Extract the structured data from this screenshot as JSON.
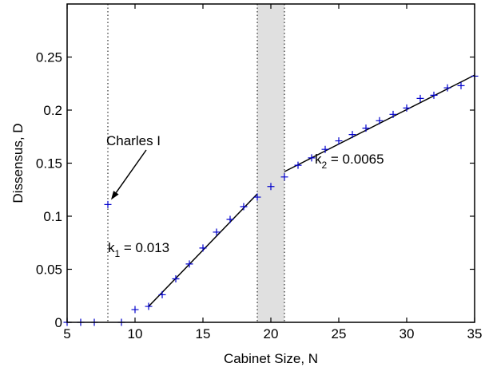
{
  "chart_data": {
    "type": "scatter",
    "xlabel": "Cabinet Size, N",
    "ylabel": "Dissensus, D",
    "xlim": [
      5,
      35
    ],
    "ylim": [
      0,
      0.3
    ],
    "xticks": [
      5,
      10,
      15,
      20,
      25,
      30,
      35
    ],
    "yticks": [
      0,
      0.05,
      0.1,
      0.15,
      0.2,
      0.25
    ],
    "ytick_labels": [
      "0",
      "0.05",
      "0.1",
      "0.15",
      "0.2",
      "0.25"
    ],
    "grid": false,
    "marker": "+",
    "marker_color": "#0000cc",
    "points": [
      {
        "x": 5,
        "y": 0
      },
      {
        "x": 6,
        "y": 0
      },
      {
        "x": 7,
        "y": 0
      },
      {
        "x": 8,
        "y": 0.111
      },
      {
        "x": 9,
        "y": 0
      },
      {
        "x": 10,
        "y": 0.012
      },
      {
        "x": 11,
        "y": 0.015
      },
      {
        "x": 12,
        "y": 0.026
      },
      {
        "x": 13,
        "y": 0.041
      },
      {
        "x": 14,
        "y": 0.055
      },
      {
        "x": 15,
        "y": 0.07
      },
      {
        "x": 16,
        "y": 0.085
      },
      {
        "x": 17,
        "y": 0.097
      },
      {
        "x": 18,
        "y": 0.109
      },
      {
        "x": 19,
        "y": 0.118
      },
      {
        "x": 20,
        "y": 0.128
      },
      {
        "x": 21,
        "y": 0.137
      },
      {
        "x": 22,
        "y": 0.148
      },
      {
        "x": 23,
        "y": 0.155
      },
      {
        "x": 24,
        "y": 0.163
      },
      {
        "x": 25,
        "y": 0.171
      },
      {
        "x": 26,
        "y": 0.177
      },
      {
        "x": 27,
        "y": 0.183
      },
      {
        "x": 28,
        "y": 0.19
      },
      {
        "x": 29,
        "y": 0.196
      },
      {
        "x": 30,
        "y": 0.202
      },
      {
        "x": 31,
        "y": 0.211
      },
      {
        "x": 32,
        "y": 0.214
      },
      {
        "x": 33,
        "y": 0.221
      },
      {
        "x": 34,
        "y": 0.223
      },
      {
        "x": 35,
        "y": 0.232
      }
    ],
    "fit_lines": [
      {
        "k_symbol": "k",
        "k_subscript": "1",
        "k_value": " = 0.013",
        "x": [
          11,
          19
        ],
        "y": [
          0.015,
          0.121
        ]
      },
      {
        "k_symbol": "k",
        "k_subscript": "2",
        "k_value": " = 0.0065",
        "x": [
          21,
          35
        ],
        "y": [
          0.142,
          0.233
        ]
      }
    ],
    "vertical_lines": [
      8,
      19,
      21
    ],
    "shaded_region": {
      "x": [
        19,
        21
      ],
      "color": "#e0e0e0"
    },
    "annotation": {
      "text": "Charles I",
      "target": {
        "x": 8,
        "y": 0.111
      }
    }
  }
}
